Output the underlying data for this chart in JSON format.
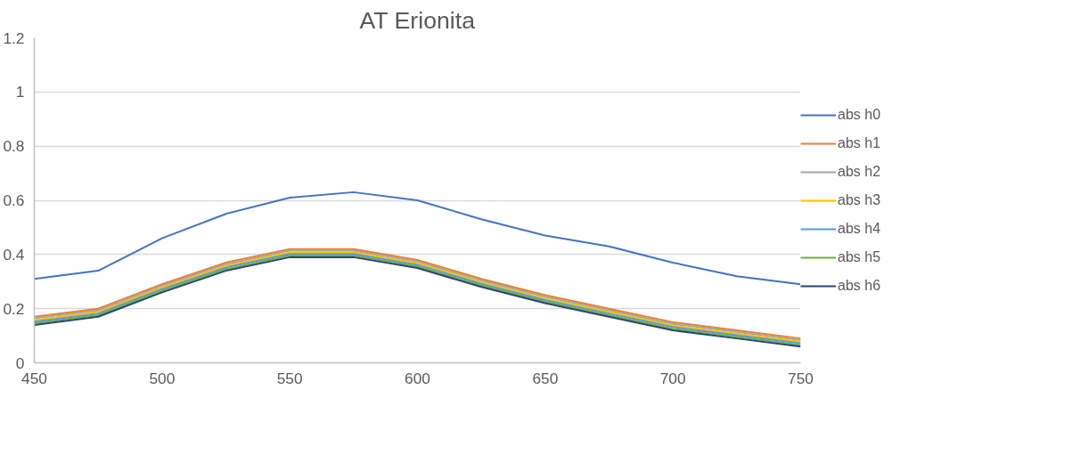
{
  "chart_data": {
    "type": "line",
    "title": "AT Erionita",
    "x": [
      450,
      475,
      500,
      525,
      550,
      575,
      600,
      625,
      650,
      675,
      700,
      725,
      750
    ],
    "xlim": [
      450,
      750
    ],
    "xticks": [
      450,
      500,
      550,
      600,
      650,
      700,
      750
    ],
    "ylim": [
      0,
      1.2
    ],
    "yticks": [
      0,
      0.2,
      0.4,
      0.6,
      0.8,
      1,
      1.2
    ],
    "grid": "y",
    "legend": "right",
    "marker": "none",
    "line_style": "solid",
    "series": [
      {
        "name": "abs h0",
        "color": "#4472c4",
        "values": [
          0.31,
          0.34,
          0.46,
          0.55,
          0.61,
          0.63,
          0.6,
          0.53,
          0.47,
          0.43,
          0.37,
          0.32,
          0.29
        ]
      },
      {
        "name": "abs h1",
        "color": "#ed7d31",
        "values": [
          0.17,
          0.2,
          0.29,
          0.37,
          0.42,
          0.42,
          0.38,
          0.31,
          0.25,
          0.2,
          0.15,
          0.12,
          0.09
        ]
      },
      {
        "name": "abs h2",
        "color": "#a5a5a5",
        "values": [
          0.164,
          0.194,
          0.284,
          0.364,
          0.414,
          0.414,
          0.374,
          0.304,
          0.244,
          0.194,
          0.144,
          0.114,
          0.084
        ]
      },
      {
        "name": "abs h3",
        "color": "#ffc000",
        "values": [
          0.158,
          0.188,
          0.278,
          0.358,
          0.408,
          0.408,
          0.368,
          0.298,
          0.238,
          0.188,
          0.138,
          0.108,
          0.078
        ]
      },
      {
        "name": "abs h4",
        "color": "#5b9bd5",
        "values": [
          0.152,
          0.182,
          0.272,
          0.352,
          0.402,
          0.402,
          0.362,
          0.292,
          0.232,
          0.182,
          0.132,
          0.102,
          0.072
        ]
      },
      {
        "name": "abs h5",
        "color": "#70ad47",
        "values": [
          0.146,
          0.176,
          0.266,
          0.346,
          0.396,
          0.396,
          0.356,
          0.286,
          0.226,
          0.176,
          0.126,
          0.096,
          0.066
        ]
      },
      {
        "name": "abs h6",
        "color": "#264478",
        "values": [
          0.14,
          0.17,
          0.26,
          0.34,
          0.39,
          0.39,
          0.35,
          0.28,
          0.22,
          0.17,
          0.12,
          0.09,
          0.06
        ]
      }
    ]
  }
}
